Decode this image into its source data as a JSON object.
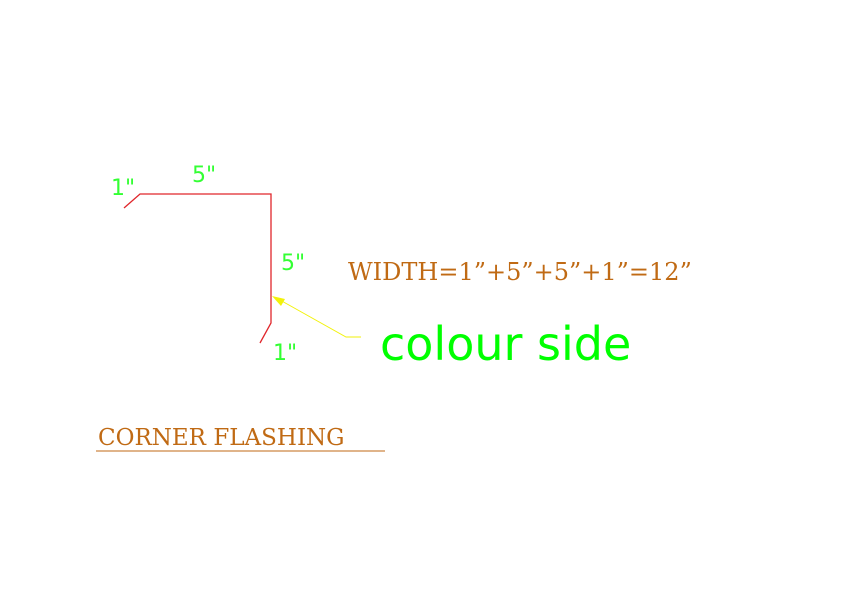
{
  "labels": {
    "dim_top_lip": "1\"",
    "dim_top_leg": "5\"",
    "dim_side_leg": "5\"",
    "dim_bottom_lip": "1\"",
    "width_formula": "WIDTH=1”+5”+5”+1”=12”",
    "colour_side_note": "colour side",
    "title": "CORNER FLASHING"
  },
  "colors": {
    "profile_line": "#e0262b",
    "dimension_text": "#33ff33",
    "leader_line": "#f2f20a",
    "annotation_text": "#c06a14",
    "note_text": "#00ff00"
  }
}
